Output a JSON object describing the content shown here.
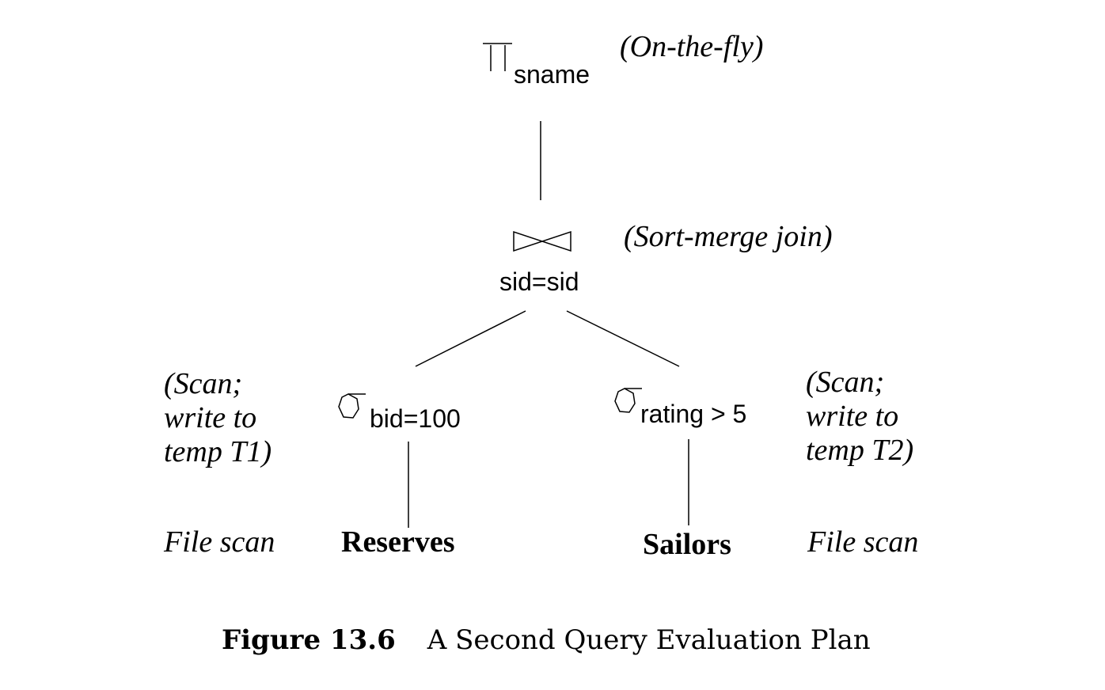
{
  "plan": {
    "project": {
      "symbol": "project-icon",
      "subscript": "sname",
      "annotation": "(On-the-fly)"
    },
    "join": {
      "symbol": "bowtie-join-icon",
      "condition": "sid=sid",
      "annotation": "(Sort-merge join)"
    },
    "select_left": {
      "symbol": "sigma-icon",
      "subscript": "bid=100",
      "annotation_lines": [
        "(Scan;",
        "write to",
        "temp T1)"
      ]
    },
    "select_right": {
      "symbol": "sigma-icon",
      "subscript": "rating > 5",
      "annotation_lines": [
        "(Scan;",
        "write to",
        "temp T2)"
      ]
    },
    "relation_left": {
      "name": "Reserves",
      "access": "File scan"
    },
    "relation_right": {
      "name": "Sailors",
      "access": "File scan"
    }
  },
  "caption": {
    "figure_label": "Figure 13.6",
    "text": "A Second Query Evaluation Plan"
  }
}
